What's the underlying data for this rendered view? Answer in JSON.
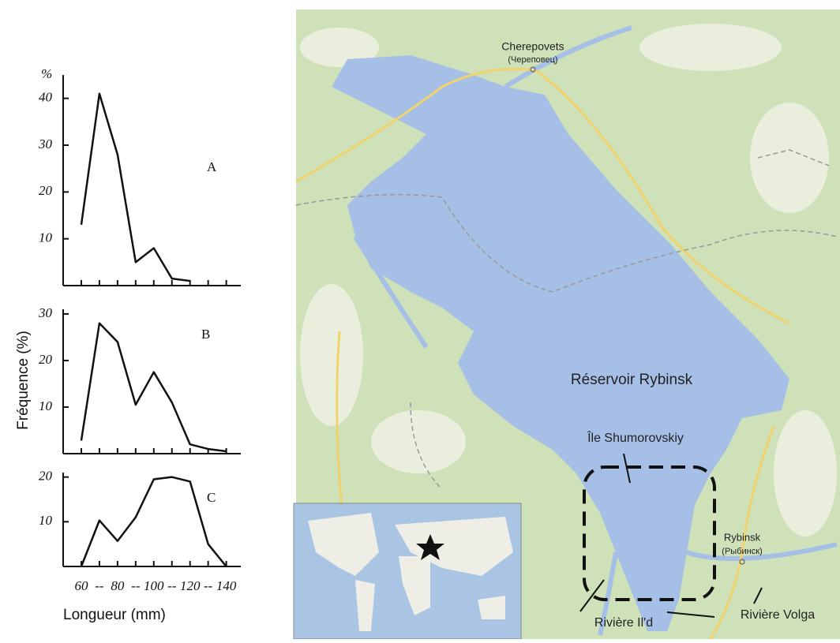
{
  "figure": {
    "ylabel": "Fréquence (%)",
    "xlabel": "Longueur (mm)"
  },
  "chart_data": [
    {
      "type": "line",
      "label": "A",
      "ylabel": "%",
      "x": [
        60,
        70,
        80,
        90,
        100,
        110,
        120
      ],
      "values": [
        13,
        41,
        28,
        5,
        8,
        1.5,
        1
      ],
      "color": "#111111",
      "xlim": [
        50,
        148
      ],
      "ylim": [
        0,
        45
      ],
      "xticks": [
        60,
        70,
        80,
        90,
        100,
        110,
        120,
        130,
        140
      ],
      "xtick_labels": false,
      "yticks": [
        10,
        20,
        30,
        40
      ]
    },
    {
      "type": "line",
      "label": "B",
      "x": [
        60,
        70,
        80,
        90,
        100,
        110,
        120,
        130,
        140
      ],
      "values": [
        2.8,
        28,
        24,
        10.5,
        17.5,
        11,
        2,
        1,
        0.5
      ],
      "color": "#111111",
      "xlim": [
        50,
        148
      ],
      "ylim": [
        0,
        31
      ],
      "xticks": [
        60,
        70,
        80,
        90,
        100,
        110,
        120,
        130,
        140
      ],
      "xtick_labels": false,
      "yticks": [
        10,
        20,
        30
      ]
    },
    {
      "type": "line",
      "label": "C",
      "x": [
        60,
        70,
        80,
        90,
        100,
        110,
        120,
        130,
        140
      ],
      "values": [
        0,
        10.3,
        5.7,
        11,
        19.5,
        20,
        19,
        5,
        0
      ],
      "color": "#111111",
      "xlim": [
        50,
        148
      ],
      "ylim": [
        0,
        21
      ],
      "xticks": [
        60,
        {
          "value": 70,
          "label": "--"
        },
        80,
        {
          "value": 90,
          "label": "--"
        },
        100,
        {
          "value": 110,
          "label": "--"
        },
        120,
        {
          "value": 130,
          "label": "--"
        },
        140
      ],
      "xtick_labels": true,
      "yticks": [
        10,
        20
      ]
    }
  ],
  "map": {
    "labels": [
      "Cherepovets",
      "(Череповец)",
      "Réservoir Rybinsk",
      "Île Shumorovskiy",
      "Rybinsk",
      "(Рыбинск)",
      "Rivière Il'd",
      "Rivière Volga"
    ]
  }
}
